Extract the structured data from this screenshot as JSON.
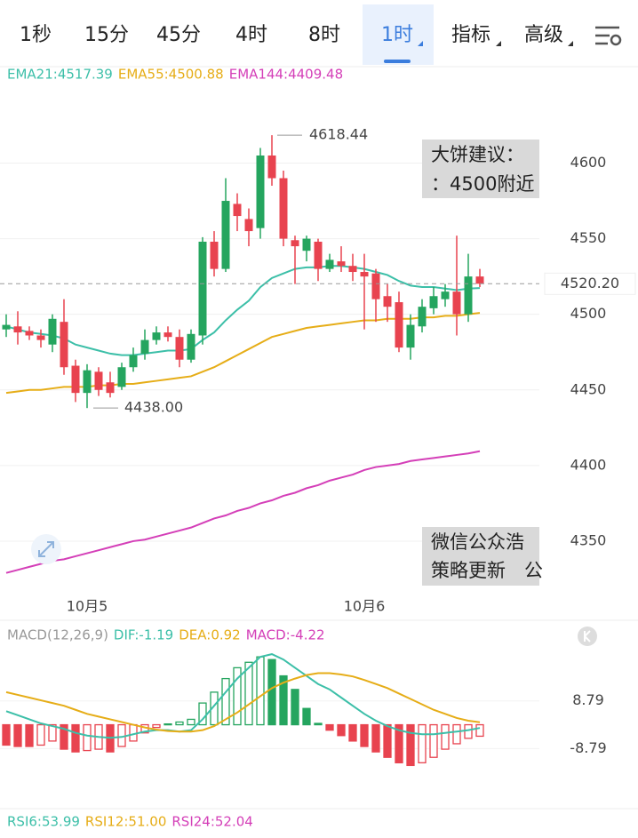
{
  "tabs": [
    "1秒",
    "15分",
    "45分",
    "4时",
    "8时",
    "1时",
    "指标",
    "高级"
  ],
  "active_tab": 5,
  "notes": [
    [
      "大饼建议：",
      "：4500附近"
    ],
    [
      "微信公众浩",
      "策略更新　公"
    ]
  ],
  "chart_data": [
    {
      "type": "candlestick",
      "categories": [
        null,
        null,
        null,
        null,
        null,
        null,
        null,
        "10月5",
        null,
        null,
        null,
        null,
        null,
        null,
        null,
        null,
        null,
        null,
        null,
        null,
        null,
        null,
        null,
        null,
        null,
        null,
        null,
        null,
        null,
        null,
        null,
        "10月6",
        null,
        null,
        null,
        null,
        null,
        null,
        null,
        null,
        null,
        null
      ],
      "open": [
        4490,
        4492,
        4489,
        4486,
        4480,
        4495,
        4466,
        4448,
        4462,
        4455,
        4452,
        4465,
        4474,
        4483,
        4488,
        4485,
        4470,
        4486,
        4548,
        4530,
        4573,
        4563,
        4557,
        4605,
        4590,
        4549,
        4542,
        4548,
        4530,
        4535,
        4532,
        4528,
        4527,
        4512,
        4508,
        4478,
        4492,
        4504,
        4510,
        4515,
        4500,
        4525
      ],
      "high": [
        4500,
        4502,
        4492,
        4490,
        4500,
        4510,
        4470,
        4467,
        4465,
        4462,
        4468,
        4478,
        4490,
        4492,
        4492,
        4490,
        4490,
        4551,
        4555,
        4590,
        4580,
        4570,
        4610,
        4618.44,
        4595,
        4552,
        4552,
        4550,
        4540,
        4545,
        4540,
        4540,
        4530,
        4520,
        4515,
        4500,
        4510,
        4518,
        4520,
        4552,
        4540,
        4530
      ],
      "low": [
        4485,
        4480,
        4483,
        4478,
        4475,
        4460,
        4442,
        4438,
        4446,
        4445,
        4450,
        4462,
        4470,
        4480,
        4482,
        4465,
        4468,
        4480,
        4525,
        4528,
        4555,
        4545,
        4550,
        4585,
        4545,
        4520,
        4535,
        4522,
        4528,
        4528,
        4522,
        4490,
        4495,
        4495,
        4475,
        4470,
        4488,
        4500,
        4505,
        4486,
        4495,
        4518
      ],
      "close": [
        4493,
        4488,
        4486,
        4483,
        4497,
        4465,
        4448,
        4463,
        4450,
        4448,
        4465,
        4473,
        4483,
        4488,
        4485,
        4470,
        4487,
        4548,
        4530,
        4575,
        4565,
        4555,
        4605,
        4590,
        4550,
        4545,
        4550,
        4530,
        4536,
        4532,
        4528,
        4525,
        4510,
        4505,
        4478,
        4493,
        4505,
        4512,
        4515,
        4500,
        4525,
        4520.2
      ],
      "up_color": "#25a55f",
      "down_color": "#e8434f",
      "series": [
        {
          "name": "EMA21:4517.39",
          "color": "#3cbfa8",
          "values": [
            4492,
            4490,
            4488,
            4487,
            4486,
            4484,
            4480,
            4478,
            4476,
            4474,
            4473,
            4473,
            4474,
            4475,
            4476,
            4476,
            4477,
            4483,
            4488,
            4496,
            4503,
            4509,
            4518,
            4524,
            4527,
            4530,
            4531,
            4531,
            4532,
            4532,
            4531,
            4530,
            4528,
            4526,
            4522,
            4519,
            4518,
            4518,
            4517,
            4516,
            4517,
            4517.39
          ]
        },
        {
          "name": "EMA55:4500.88",
          "color": "#e6ad17",
          "values": [
            4448,
            4449,
            4450,
            4450,
            4451,
            4452,
            4452,
            4452,
            4453,
            4453,
            4454,
            4454,
            4455,
            4456,
            4457,
            4458,
            4459,
            4462,
            4465,
            4469,
            4473,
            4477,
            4481,
            4485,
            4487,
            4489,
            4491,
            4492,
            4493,
            4494,
            4495,
            4496,
            4496,
            4497,
            4497,
            4497,
            4498,
            4498,
            4499,
            4499,
            4500,
            4500.88
          ]
        },
        {
          "name": "EMA144:4409.48",
          "color": "#d43fb8",
          "values": [
            4329,
            4331,
            4333,
            4335,
            4337,
            4338,
            4340,
            4342,
            4344,
            4346,
            4348,
            4350,
            4351,
            4353,
            4355,
            4357,
            4359,
            4362,
            4365,
            4367,
            4370,
            4372,
            4375,
            4377,
            4380,
            4382,
            4385,
            4387,
            4390,
            4392,
            4394,
            4397,
            4399,
            4400,
            4401,
            4403,
            4404,
            4405,
            4406,
            4407,
            4408,
            4409.48
          ]
        }
      ],
      "high_label": "4618.44",
      "low_label": "4438.00",
      "last_price": {
        "value": 4520.2,
        "label": "4520.20"
      },
      "ylim": [
        4320,
        4652
      ],
      "yticks": [
        4350,
        4400,
        4450,
        4500,
        4550,
        4600
      ],
      "grid": true
    },
    {
      "type": "macd",
      "title": "MACD(12,26,9)",
      "series": [
        {
          "name": "DIF:-1.19",
          "color": "#3cbfa8",
          "values": [
            5,
            3.5,
            2,
            0.5,
            -0.5,
            -1.5,
            -3,
            -4,
            -4.5,
            -4.8,
            -4.5,
            -3.5,
            -2.5,
            -2,
            -2,
            -2.5,
            -2,
            2,
            7,
            12,
            17,
            21,
            25,
            26,
            24,
            21,
            18,
            15,
            13,
            10,
            7,
            4,
            1.5,
            -0.5,
            -2,
            -3,
            -3.5,
            -3.5,
            -3,
            -2.5,
            -2,
            -1.19
          ]
        },
        {
          "name": "DEA:0.92",
          "color": "#e6ad17",
          "values": [
            12,
            11,
            10,
            9,
            8,
            7,
            5.5,
            4,
            3,
            2,
            1,
            0,
            -1,
            -1.8,
            -2.3,
            -2.5,
            -2.5,
            -2,
            -0.5,
            2,
            4.5,
            7.5,
            10.5,
            13.5,
            15.5,
            17,
            18.3,
            19,
            19,
            18.5,
            17.8,
            16.5,
            15,
            13.5,
            11.5,
            9.5,
            7.5,
            5.5,
            4,
            2.5,
            1.5,
            0.92
          ]
        }
      ],
      "histogram": {
        "name": "MACD:-4.22",
        "color": "#d43fb8",
        "positive_color": "#25a55f",
        "negative_color": "#e8434f",
        "values": [
          -7.5,
          -8,
          -8,
          -7.5,
          -6,
          -9,
          -10,
          -9.5,
          -9,
          -10,
          -8,
          -6,
          -3,
          -1,
          0.3,
          1,
          2,
          8,
          12,
          17,
          21,
          23,
          25,
          24,
          18,
          13,
          6,
          0.5,
          -2,
          -4,
          -6,
          -8,
          -10,
          -12,
          -14,
          -15,
          -14,
          -12,
          -9,
          -7,
          -5,
          -4.22
        ]
      },
      "ylim": [
        -26,
        28
      ],
      "yticks": [
        -8.79,
        8.79
      ],
      "grid": true
    },
    {
      "type": "line",
      "series": [
        {
          "name": "RSI6:53.99",
          "color": "#3cbfa8"
        },
        {
          "name": "RSI12:51.00",
          "color": "#e6ad17"
        },
        {
          "name": "RSI24:52.04",
          "color": "#d43fb8"
        }
      ]
    }
  ]
}
